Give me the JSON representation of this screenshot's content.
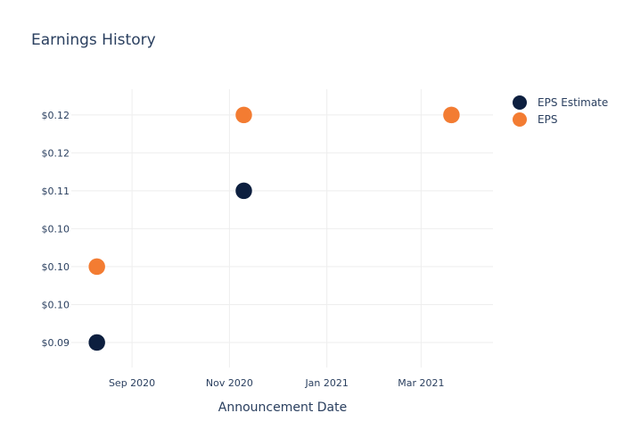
{
  "chart_data": {
    "type": "scatter",
    "title": "Earnings History",
    "xlabel": "Announcement Date",
    "ylabel": "",
    "x_ticks": [
      {
        "date": "2020-09-01",
        "label": "Sep 2020"
      },
      {
        "date": "2020-11-01",
        "label": "Nov 2020"
      },
      {
        "date": "2021-01-01",
        "label": "Jan 2021"
      },
      {
        "date": "2021-03-01",
        "label": "Mar 2021"
      }
    ],
    "x_range": [
      "2020-07-25",
      "2021-04-15"
    ],
    "y_ticks": [
      {
        "value": 0.09,
        "label": "$0.09"
      },
      {
        "value": 0.095,
        "label": "$0.10"
      },
      {
        "value": 0.1,
        "label": "$0.10"
      },
      {
        "value": 0.105,
        "label": "$0.10"
      },
      {
        "value": 0.11,
        "label": "$0.11"
      },
      {
        "value": 0.115,
        "label": "$0.12"
      },
      {
        "value": 0.12,
        "label": "$0.12"
      }
    ],
    "y_range": [
      0.0867,
      0.1234
    ],
    "grid": true,
    "legend_position": "top-right",
    "series": [
      {
        "name": "EPS Estimate",
        "color": "#0d1f3f",
        "points": [
          {
            "x": "2020-08-10",
            "y": 0.09
          },
          {
            "x": "2020-11-10",
            "y": 0.11
          },
          {
            "x": "2021-03-20",
            "y": 0.12
          }
        ]
      },
      {
        "name": "EPS",
        "color": "#f37c32",
        "points": [
          {
            "x": "2020-08-10",
            "y": 0.1
          },
          {
            "x": "2020-11-10",
            "y": 0.12
          },
          {
            "x": "2021-03-20",
            "y": 0.12
          }
        ]
      }
    ]
  }
}
